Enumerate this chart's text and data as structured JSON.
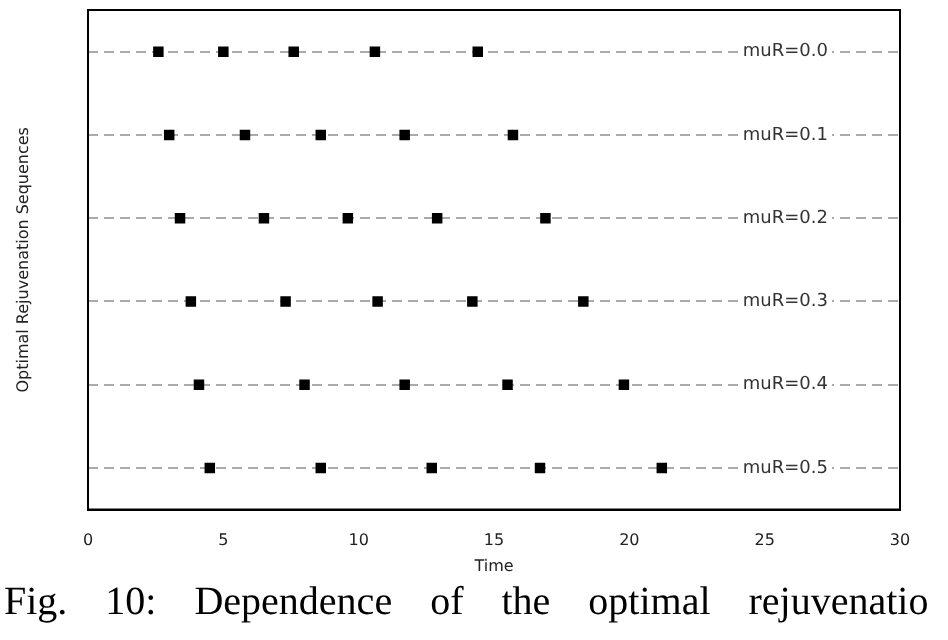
{
  "chart_data": {
    "type": "scatter",
    "orientation": "horizontal",
    "xlabel": "Time",
    "ylabel": "Optimal Rejuvenation Sequences",
    "categories": [
      "muR=0.0",
      "muR=0.1",
      "muR=0.2",
      "muR=0.3",
      "muR=0.4",
      "muR=0.5"
    ],
    "xlim": [
      0,
      30
    ],
    "xticks": [
      0,
      5,
      10,
      15,
      20,
      25,
      30
    ],
    "grid": "y",
    "line_style": "dashed",
    "legend": false,
    "marker": "square",
    "series": [
      {
        "color": "#000000",
        "values": [
          2.6,
          3.0,
          3.4,
          3.8,
          4.1,
          4.5
        ]
      },
      {
        "color": "#000000",
        "values": [
          5.0,
          5.8,
          6.5,
          7.3,
          8.0,
          8.6
        ]
      },
      {
        "color": "#000000",
        "values": [
          7.6,
          8.6,
          9.6,
          10.7,
          11.7,
          12.7
        ]
      },
      {
        "color": "#000000",
        "values": [
          10.6,
          11.7,
          12.9,
          14.2,
          15.5,
          16.7
        ]
      },
      {
        "color": "#000000",
        "values": [
          14.4,
          15.7,
          16.9,
          18.3,
          19.8,
          21.2
        ]
      }
    ],
    "annotations": [
      "Fig. 10: Dependence of the optimal rejuvenatio"
    ]
  }
}
